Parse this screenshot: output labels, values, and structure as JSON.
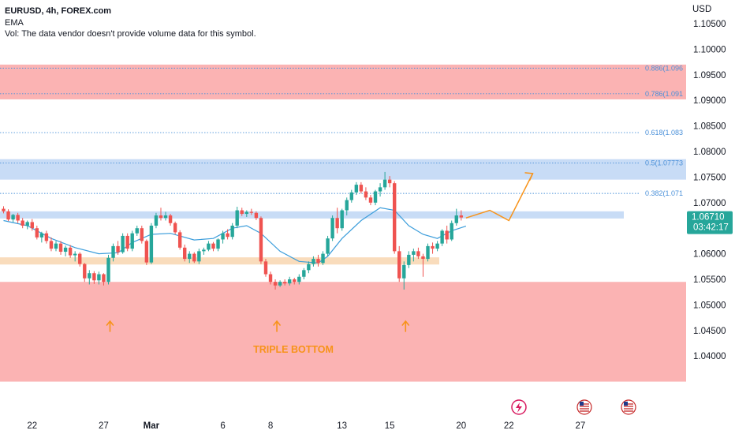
{
  "header": {
    "symbol_line": "EURUSD, 4h, FOREX.com",
    "ema_label": "EMA",
    "vol_line": "Vol: The data vendor doesn't provide volume data for this symbol."
  },
  "colors": {
    "up": "#26a69a",
    "down": "#ef5350",
    "ema": "#3b9ddb",
    "price_badge": "#26a69a",
    "annotation": "#f7931a",
    "red_zone": "#fbb3b3",
    "blue_zone": "#c8dcf6",
    "orange_zone": "#f9dcbc",
    "fib_line": "#4a90d9"
  },
  "chart_data": {
    "type": "candlestick",
    "ylabel": "USD",
    "ylim": [
      1.0345,
      1.1085
    ],
    "y_ticks": [
      "1.10500",
      "1.10000",
      "1.09500",
      "1.09000",
      "1.08500",
      "1.08000",
      "1.07500",
      "1.07000",
      "1.06500",
      "1.06000",
      "1.05500",
      "1.05000",
      "1.04500",
      "1.04000"
    ],
    "x_ticks": [
      {
        "label": "22",
        "bar": 6
      },
      {
        "label": "27",
        "bar": 21
      },
      {
        "label": "Mar",
        "bar": 31
      },
      {
        "label": "6",
        "bar": 46
      },
      {
        "label": "8",
        "bar": 56
      },
      {
        "label": "13",
        "bar": 71
      },
      {
        "label": "15",
        "bar": 81
      },
      {
        "label": "20",
        "bar": 96
      },
      {
        "label": "22",
        "bar": 106
      },
      {
        "label": "27",
        "bar": 121
      }
    ],
    "last_price": {
      "value": "1.06710",
      "countdown": "03:42:17"
    },
    "fib_levels": [
      {
        "label": "0.886(1.096",
        "price": 1.0963
      },
      {
        "label": "0.786(1.091",
        "price": 1.0913
      },
      {
        "label": "0.618(1.083",
        "price": 1.0837
      },
      {
        "label": "0.5(1.07773",
        "price": 1.07773
      },
      {
        "label": "0.382(1.071",
        "price": 1.0718
      }
    ],
    "zones": [
      {
        "kind": "red",
        "top": 1.097,
        "bottom": 1.0902
      },
      {
        "kind": "blue",
        "top": 1.0785,
        "bottom": 1.0745
      },
      {
        "kind": "blue",
        "top": 1.0683,
        "bottom": 1.0669
      },
      {
        "kind": "orange",
        "top": 1.0593,
        "bottom": 1.0579
      },
      {
        "kind": "red",
        "top": 1.0545,
        "bottom": 1.035
      }
    ],
    "annotations": {
      "pattern_label": "TRIPLE BOTTOM",
      "arrow_bars": [
        22,
        57,
        84
      ],
      "projection": [
        [
          97,
          1.067
        ],
        [
          102,
          1.0685
        ],
        [
          106,
          1.0665
        ],
        [
          111,
          1.0757
        ]
      ]
    },
    "ema_anchors": [
      [
        0,
        1.0665
      ],
      [
        5,
        1.0655
      ],
      [
        10,
        1.063
      ],
      [
        15,
        1.0612
      ],
      [
        20,
        1.06
      ],
      [
        24,
        1.0602
      ],
      [
        27,
        1.0622
      ],
      [
        31,
        1.0638
      ],
      [
        35,
        1.064
      ],
      [
        40,
        1.0627
      ],
      [
        44,
        1.063
      ],
      [
        48,
        1.065
      ],
      [
        51,
        1.0655
      ],
      [
        54,
        1.064
      ],
      [
        58,
        1.0605
      ],
      [
        62,
        1.0585
      ],
      [
        66,
        1.0582
      ],
      [
        68,
        1.0595
      ],
      [
        71,
        1.063
      ],
      [
        75,
        1.0665
      ],
      [
        79,
        1.069
      ],
      [
        82,
        1.0685
      ],
      [
        85,
        1.0655
      ],
      [
        88,
        1.0638
      ],
      [
        91,
        1.063
      ],
      [
        94,
        1.0645
      ],
      [
        97,
        1.0654
      ]
    ],
    "candles": [
      [
        1.0688,
        1.0693,
        1.0679,
        1.0683
      ],
      [
        1.0683,
        1.0687,
        1.0664,
        1.0667
      ],
      [
        1.0667,
        1.0678,
        1.0662,
        1.0676
      ],
      [
        1.0676,
        1.068,
        1.066,
        1.0665
      ],
      [
        1.0665,
        1.067,
        1.065,
        1.0655
      ],
      [
        1.0655,
        1.0665,
        1.0648,
        1.0662
      ],
      [
        1.0662,
        1.0668,
        1.0645,
        1.065
      ],
      [
        1.065,
        1.0655,
        1.0628,
        1.0632
      ],
      [
        1.0632,
        1.0643,
        1.0622,
        1.064
      ],
      [
        1.064,
        1.0645,
        1.062,
        1.0625
      ],
      [
        1.0625,
        1.0632,
        1.0605,
        1.061
      ],
      [
        1.061,
        1.0625,
        1.0605,
        1.062
      ],
      [
        1.062,
        1.0625,
        1.0598,
        1.0604
      ],
      [
        1.0604,
        1.0616,
        1.0595,
        1.0612
      ],
      [
        1.0612,
        1.0617,
        1.0592,
        1.0597
      ],
      [
        1.0597,
        1.0605,
        1.0585,
        1.06
      ],
      [
        1.06,
        1.0603,
        1.0575,
        1.058
      ],
      [
        1.058,
        1.0582,
        1.0545,
        1.0552
      ],
      [
        1.0552,
        1.0568,
        1.054,
        1.0562
      ],
      [
        1.0562,
        1.0566,
        1.0541,
        1.0548
      ],
      [
        1.0548,
        1.0565,
        1.054,
        1.056
      ],
      [
        1.056,
        1.0562,
        1.0538,
        1.0545
      ],
      [
        1.0545,
        1.0598,
        1.054,
        1.0592
      ],
      [
        1.0592,
        1.062,
        1.0585,
        1.0615
      ],
      [
        1.0615,
        1.0625,
        1.0598,
        1.0603
      ],
      [
        1.0603,
        1.064,
        1.06,
        1.0635
      ],
      [
        1.0635,
        1.064,
        1.0605,
        1.061
      ],
      [
        1.061,
        1.0645,
        1.0605,
        1.064
      ],
      [
        1.064,
        1.0655,
        1.0635,
        1.065
      ],
      [
        1.065,
        1.0655,
        1.062,
        1.0625
      ],
      [
        1.0625,
        1.0628,
        1.0578,
        1.0583
      ],
      [
        1.0583,
        1.066,
        1.058,
        1.0655
      ],
      [
        1.0655,
        1.068,
        1.065,
        1.0675
      ],
      [
        1.0675,
        1.069,
        1.0665,
        1.067
      ],
      [
        1.067,
        1.0682,
        1.0665,
        1.0675
      ],
      [
        1.0675,
        1.0678,
        1.0655,
        1.066
      ],
      [
        1.066,
        1.0663,
        1.0638,
        1.0642
      ],
      [
        1.0642,
        1.0646,
        1.0608,
        1.0612
      ],
      [
        1.0612,
        1.0618,
        1.0585,
        1.059
      ],
      [
        1.059,
        1.0605,
        1.0582,
        1.06
      ],
      [
        1.06,
        1.0603,
        1.0582,
        1.0585
      ],
      [
        1.0585,
        1.061,
        1.058,
        1.0605
      ],
      [
        1.0605,
        1.0612,
        1.0598,
        1.0608
      ],
      [
        1.0608,
        1.0625,
        1.0605,
        1.062
      ],
      [
        1.062,
        1.0623,
        1.0605,
        1.061
      ],
      [
        1.061,
        1.063,
        1.0605,
        1.0628
      ],
      [
        1.0628,
        1.0645,
        1.062,
        1.064
      ],
      [
        1.064,
        1.0648,
        1.0628,
        1.0633
      ],
      [
        1.0633,
        1.066,
        1.0628,
        1.0655
      ],
      [
        1.0655,
        1.0692,
        1.065,
        1.0685
      ],
      [
        1.0685,
        1.069,
        1.0674,
        1.0678
      ],
      [
        1.0678,
        1.0685,
        1.0672,
        1.0682
      ],
      [
        1.0682,
        1.0688,
        1.0676,
        1.068
      ],
      [
        1.068,
        1.0683,
        1.0666,
        1.067
      ],
      [
        1.067,
        1.0673,
        1.058,
        1.0585
      ],
      [
        1.0585,
        1.059,
        1.0555,
        1.056
      ],
      [
        1.056,
        1.0565,
        1.054,
        1.0545
      ],
      [
        1.0545,
        1.055,
        1.053,
        1.0538
      ],
      [
        1.0538,
        1.0548,
        1.0535,
        1.0545
      ],
      [
        1.0545,
        1.055,
        1.0538,
        1.0542
      ],
      [
        1.0542,
        1.0555,
        1.0538,
        1.055
      ],
      [
        1.055,
        1.0553,
        1.054,
        1.0545
      ],
      [
        1.0545,
        1.056,
        1.054,
        1.0555
      ],
      [
        1.0555,
        1.0572,
        1.055,
        1.0568
      ],
      [
        1.0568,
        1.0585,
        1.0562,
        1.058
      ],
      [
        1.058,
        1.0595,
        1.0575,
        1.059
      ],
      [
        1.059,
        1.0598,
        1.0575,
        1.0582
      ],
      [
        1.0582,
        1.0605,
        1.0578,
        1.06
      ],
      [
        1.06,
        1.0635,
        1.0595,
        1.063
      ],
      [
        1.063,
        1.0675,
        1.0625,
        1.067
      ],
      [
        1.067,
        1.069,
        1.064,
        1.065
      ],
      [
        1.065,
        1.0688,
        1.0645,
        1.0685
      ],
      [
        1.0685,
        1.071,
        1.0675,
        1.0705
      ],
      [
        1.0705,
        1.0725,
        1.07,
        1.072
      ],
      [
        1.072,
        1.074,
        1.0715,
        1.0735
      ],
      [
        1.0735,
        1.074,
        1.0718,
        1.0722
      ],
      [
        1.0722,
        1.073,
        1.0705,
        1.071
      ],
      [
        1.071,
        1.0715,
        1.0695,
        1.07
      ],
      [
        1.07,
        1.0725,
        1.0695,
        1.0722
      ],
      [
        1.0722,
        1.0738,
        1.0712,
        1.073
      ],
      [
        1.073,
        1.076,
        1.0725,
        1.0745
      ],
      [
        1.0745,
        1.0752,
        1.073,
        1.0738
      ],
      [
        1.0738,
        1.0742,
        1.06,
        1.0605
      ],
      [
        1.0605,
        1.0615,
        1.0545,
        1.0552
      ],
      [
        1.0552,
        1.0585,
        1.053,
        1.0578
      ],
      [
        1.0578,
        1.0605,
        1.0572,
        1.0598
      ],
      [
        1.0598,
        1.061,
        1.0585,
        1.0605
      ],
      [
        1.0605,
        1.0612,
        1.059,
        1.0595
      ],
      [
        1.0595,
        1.06,
        1.0555,
        1.059
      ],
      [
        1.059,
        1.062,
        1.0585,
        1.0615
      ],
      [
        1.0615,
        1.0622,
        1.06,
        1.061
      ],
      [
        1.061,
        1.0625,
        1.0605,
        1.062
      ],
      [
        1.062,
        1.0648,
        1.0615,
        1.0645
      ],
      [
        1.0645,
        1.0655,
        1.062,
        1.0628
      ],
      [
        1.0628,
        1.0665,
        1.0625,
        1.066
      ],
      [
        1.066,
        1.0688,
        1.0655,
        1.0675
      ],
      [
        1.0675,
        1.0685,
        1.0665,
        1.0671
      ]
    ]
  }
}
